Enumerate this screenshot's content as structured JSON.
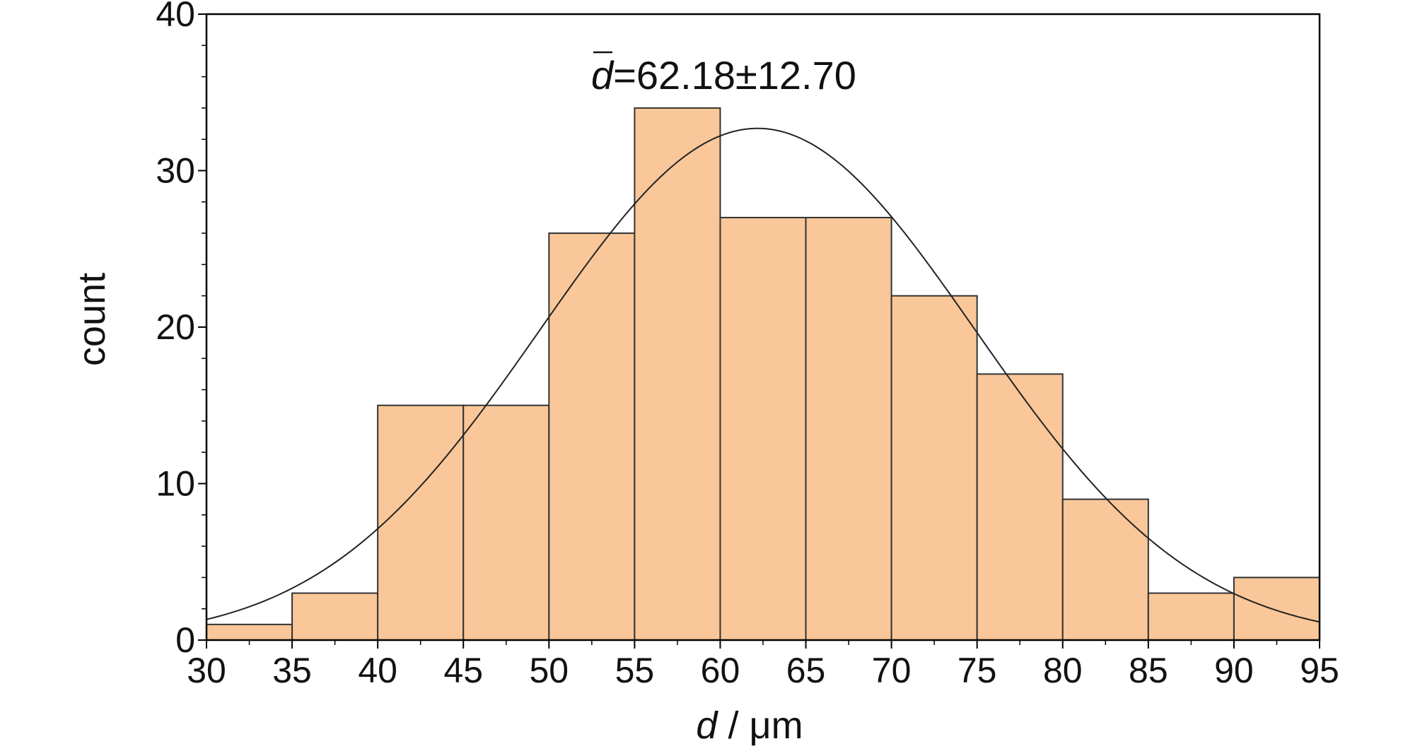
{
  "chart_data": {
    "type": "bar",
    "subtype": "histogram",
    "bin_edges": [
      30,
      35,
      40,
      45,
      50,
      55,
      60,
      65,
      70,
      75,
      80,
      85,
      90,
      95
    ],
    "values": [
      1,
      3,
      15,
      15,
      26,
      34,
      27,
      27,
      22,
      17,
      9,
      3,
      4
    ],
    "fit_curve": {
      "type": "normal",
      "mean": 62.18,
      "sd": 12.7,
      "peak_count": 32.7
    },
    "annotation": {
      "symbol": "d",
      "text": "=62.18±12.70"
    },
    "xlabel": {
      "symbol": "d",
      "unit": " / μm"
    },
    "ylabel": "count",
    "xlim": [
      30,
      95
    ],
    "ylim": [
      0,
      40
    ],
    "x_ticks": [
      "30",
      "35",
      "40",
      "45",
      "50",
      "55",
      "60",
      "65",
      "70",
      "75",
      "80",
      "85",
      "90",
      "95"
    ],
    "y_ticks": [
      "0",
      "10",
      "20",
      "30",
      "40"
    ],
    "grid": false,
    "colors": {
      "bar_fill": "#f9c799",
      "bar_edge": "#333333",
      "curve": "#222222",
      "frame": "#000000"
    }
  }
}
